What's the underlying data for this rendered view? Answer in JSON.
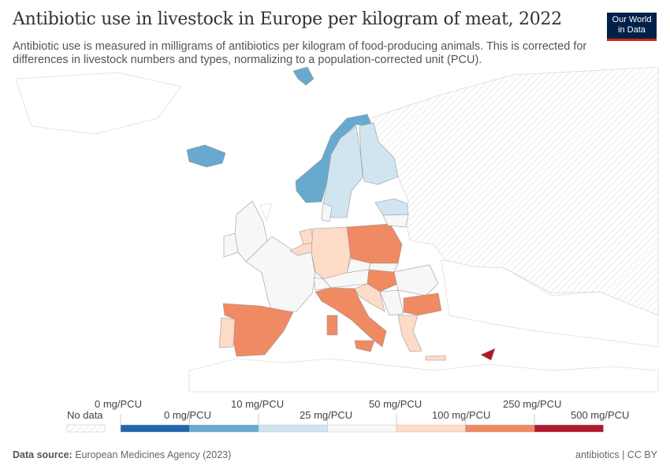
{
  "title": "Antibiotic use in livestock in Europe per kilogram of meat, 2022",
  "subtitle": "Antibiotic use is measured in milligrams of antibiotics per kilogram of food-producing animals. This is corrected for differences in livestock numbers and types, normalizing to a population-corrected unit (PCU).",
  "logo": {
    "line1": "Our World",
    "line2": "in Data"
  },
  "legend": {
    "no_data": "No data",
    "upper_labels": [
      "0 mg/PCU",
      "10 mg/PCU",
      "50 mg/PCU",
      "250 mg/PCU"
    ],
    "lower_labels": [
      "0 mg/PCU",
      "25 mg/PCU",
      "100 mg/PCU",
      "500 mg/PCU"
    ],
    "colors": [
      "#2166ac",
      "#67a9cf",
      "#d1e5f0",
      "#f7f7f7",
      "#fddbc7",
      "#ef8a62",
      "#b2182b"
    ]
  },
  "countries": {
    "Iceland": 1,
    "Svalbard": 1,
    "Norway": 1,
    "Sweden": 2,
    "Finland": 2,
    "Baltics": 2,
    "Denmark": 3,
    "United Kingdom": 3,
    "Ireland": 3,
    "France": 3,
    "Netherlands": 4,
    "Belgium": 4,
    "Germany": 4,
    "Poland": 5,
    "Czechia": 3,
    "Austria": 3,
    "Switzerland": 3,
    "Hungary": 5,
    "Italy": 5,
    "Sardinia": 5,
    "Sicily": 5,
    "Spain": 5,
    "Portugal": 4,
    "Romania": 3,
    "Bulgaria": 5,
    "Greece": 4,
    "Crete": 4,
    "Croatia": 4,
    "Serbia": 3,
    "Lithuania": 3,
    "Slovakia": 3,
    "Cyprus": 6
  },
  "footer": {
    "source_label": "Data source:",
    "source": "European Medicines Agency (2023)",
    "license": "antibiotics | CC BY"
  }
}
